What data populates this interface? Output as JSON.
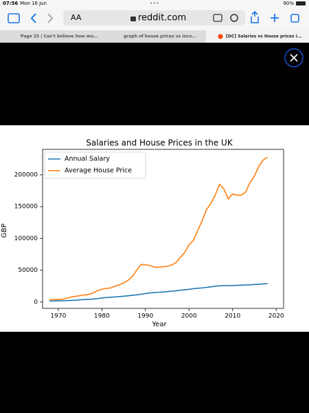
{
  "status_bar": {
    "time": "07:56",
    "date": "Mon 16 Jun",
    "battery": "90%"
  },
  "toolbar": {
    "text_size": "AA",
    "address": "reddit.com"
  },
  "tabs": [
    "Page 25 | Can't believe how mu...",
    "graph of house prices vs inco...",
    "[OC] Salaries vs House prices i..."
  ],
  "chart_data": {
    "type": "line",
    "title": "Salaries and House Prices in the UK",
    "xlabel": "Year",
    "ylabel": "GBP",
    "x": [
      1968,
      1969,
      1970,
      1971,
      1972,
      1973,
      1974,
      1975,
      1976,
      1977,
      1978,
      1979,
      1980,
      1981,
      1982,
      1983,
      1984,
      1985,
      1986,
      1987,
      1988,
      1989,
      1990,
      1991,
      1992,
      1993,
      1994,
      1995,
      1996,
      1997,
      1998,
      1999,
      2000,
      2001,
      2002,
      2003,
      2004,
      2005,
      2006,
      2007,
      2008,
      2009,
      2010,
      2011,
      2012,
      2013,
      2014,
      2015,
      2016,
      2017,
      2018
    ],
    "series": [
      {
        "name": "Annual Salary",
        "color": "#1f77b4",
        "values": [
          1500,
          1600,
          1800,
          2000,
          2200,
          2500,
          2900,
          3500,
          3900,
          4200,
          4700,
          5300,
          6400,
          7000,
          7500,
          8000,
          8500,
          9100,
          9800,
          10500,
          11300,
          12200,
          13300,
          14200,
          15000,
          15300,
          15800,
          16300,
          17000,
          17700,
          18600,
          19200,
          20000,
          21000,
          21600,
          22200,
          23000,
          23800,
          24800,
          25500,
          26000,
          25800,
          26000,
          26200,
          26500,
          26800,
          27000,
          27500,
          28000,
          28500,
          29000
        ]
      },
      {
        "name": "Average House Price",
        "color": "#ff7f0e",
        "values": [
          3500,
          3700,
          4000,
          4500,
          6000,
          8000,
          9000,
          10000,
          11000,
          12000,
          14000,
          18000,
          20000,
          21500,
          22000,
          25000,
          27000,
          30000,
          34000,
          40000,
          50000,
          59000,
          58500,
          57500,
          55000,
          54500,
          55500,
          56000,
          58000,
          62000,
          70000,
          78000,
          90000,
          97000,
          112000,
          128000,
          145000,
          155000,
          168000,
          185000,
          178000,
          162000,
          170000,
          168000,
          168000,
          173000,
          188000,
          198000,
          213000,
          223000,
          228000
        ]
      }
    ],
    "xlim": [
      1966.4,
      2021.7
    ],
    "ylim": [
      -10000,
      240000
    ],
    "xticks": [
      1970,
      1980,
      1990,
      2000,
      2010,
      2020
    ],
    "yticks": [
      0,
      50000,
      100000,
      150000,
      200000
    ],
    "legend": "upper left"
  }
}
